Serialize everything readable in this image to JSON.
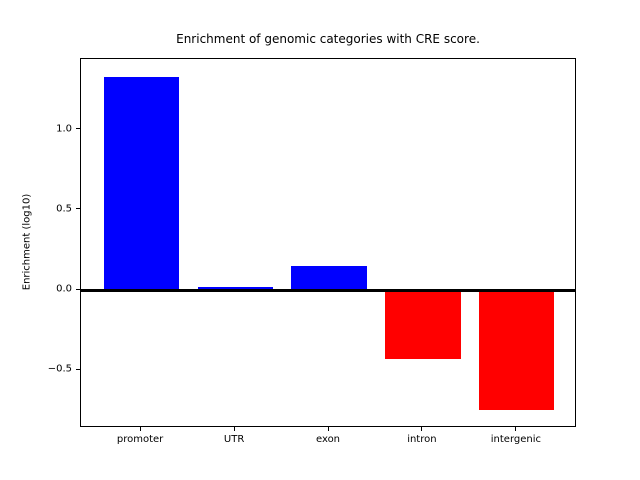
{
  "figure": {
    "background_color": "#ffffff",
    "axis_color": "#000000"
  },
  "chart_data": {
    "type": "bar",
    "title": "Enrichment of genomic categories with CRE score.",
    "xlabel": "",
    "ylabel": "Enrichment (log10)",
    "categories": [
      "promoter",
      "UTR",
      "exon",
      "intron",
      "intergenic"
    ],
    "values": [
      1.33,
      0.02,
      0.15,
      -0.43,
      -0.75
    ],
    "positive_color": "#0000ff",
    "negative_color": "#ff0000",
    "bar_width": 0.8,
    "ylim": [
      -0.86,
      1.44
    ],
    "xlim": [
      -0.64,
      4.64
    ],
    "yticks": [
      {
        "label": "1.0",
        "value": 1.0
      },
      {
        "label": "0.5",
        "value": 0.5
      },
      {
        "label": "0.0",
        "value": 0.0
      },
      {
        "label": "−0.5",
        "value": -0.5
      }
    ],
    "zero_line": {
      "value": 0.0,
      "color": "#000000",
      "thickness_px": 3
    },
    "grid": false,
    "legend_position": "none"
  }
}
